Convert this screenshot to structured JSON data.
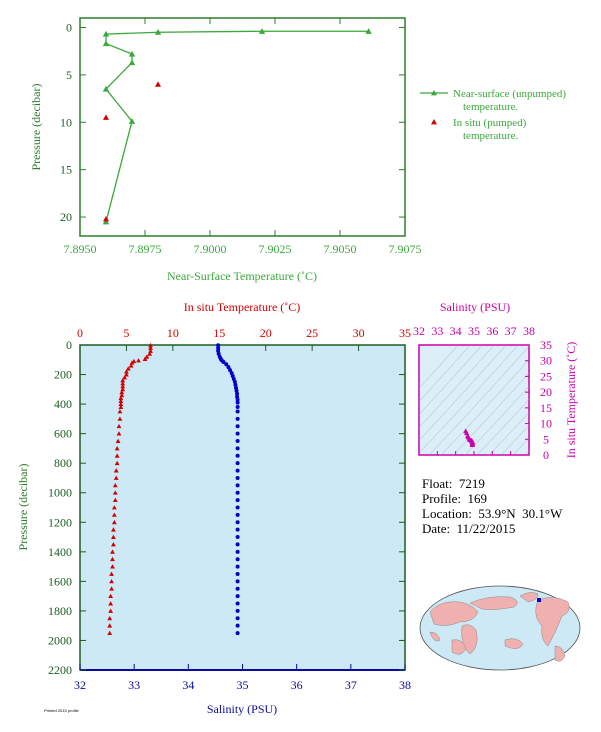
{
  "colors": {
    "near_surface": "#3aa83a",
    "insitu": "#d40000",
    "salinity": "#0000cc",
    "salinity_axis": "#0a0a9e",
    "magenta": "#cc00aa",
    "axis_green": "#2e7d2e",
    "panel_bg": "#cde9f5",
    "ts_bg": "#dceef7",
    "land": "#f0b0b0",
    "ocean": "#cde9f5"
  },
  "info": {
    "float": "Float:  7219",
    "profile": "Profile:  169",
    "location": "Location:  53.9°N  30.1°W",
    "date": "Date:  11/22/2015"
  },
  "footer_note": "Printed 2015 profile",
  "chart_data": [
    {
      "id": "near_surface",
      "type": "line",
      "xlabel": "Near-Surface Temperature (˚C)",
      "ylabel": "Pressure (decibar)",
      "xlim": [
        7.895,
        7.9075
      ],
      "ylim": [
        22,
        -1
      ],
      "x_ticks": [
        "7.8950",
        "7.8975",
        "7.9000",
        "7.9025",
        "7.9050",
        "7.9075"
      ],
      "y_ticks": [
        "0",
        "5",
        "10",
        "15",
        "20"
      ],
      "legend_position": "right",
      "series": [
        {
          "name": "Near-surface (unpumped)\ntemperature.",
          "marker": "triangle",
          "points": [
            [
              7.9061,
              0.4
            ],
            [
              7.902,
              0.4
            ],
            [
              7.898,
              0.5
            ],
            [
              7.896,
              0.7
            ],
            [
              7.896,
              1.7
            ],
            [
              7.897,
              2.8
            ],
            [
              7.897,
              3.7
            ],
            [
              7.896,
              6.5
            ],
            [
              7.897,
              9.9
            ],
            [
              7.896,
              20.5
            ]
          ]
        },
        {
          "name": "In situ (pumped)\ntemperature.",
          "marker": "triangle",
          "points": [
            [
              7.898,
              6.0
            ],
            [
              7.896,
              9.5
            ],
            [
              7.896,
              20.2
            ]
          ]
        }
      ]
    },
    {
      "id": "profile",
      "type": "scatter",
      "title": "In situ Temperature (˚C)",
      "xlabel": "Salinity (PSU)",
      "ylabel": "Pressure (decibar)",
      "top_axis": {
        "range": [
          0,
          35
        ],
        "ticks": [
          "0",
          "5",
          "10",
          "15",
          "20",
          "25",
          "30",
          "35"
        ]
      },
      "bottom_axis": {
        "range": [
          32,
          38
        ],
        "ticks": [
          "32",
          "33",
          "34",
          "35",
          "36",
          "37",
          "38"
        ]
      },
      "ylim": [
        2200,
        0
      ],
      "y_ticks": [
        "0",
        "200",
        "400",
        "600",
        "800",
        "1000",
        "1200",
        "1400",
        "1600",
        "1800",
        "2000",
        "2200"
      ],
      "temperature_profile": [
        [
          7.6,
          2
        ],
        [
          7.6,
          20
        ],
        [
          7.6,
          40
        ],
        [
          7.5,
          60
        ],
        [
          7.2,
          80
        ],
        [
          7.0,
          95
        ],
        [
          6.3,
          105
        ],
        [
          5.8,
          110
        ],
        [
          5.6,
          120
        ],
        [
          5.5,
          140
        ],
        [
          5.2,
          160
        ],
        [
          5.0,
          180
        ],
        [
          5.0,
          200
        ],
        [
          4.8,
          220
        ],
        [
          4.6,
          240
        ],
        [
          4.6,
          260
        ],
        [
          4.6,
          280
        ],
        [
          4.6,
          300
        ],
        [
          4.5,
          320
        ],
        [
          4.5,
          340
        ],
        [
          4.4,
          360
        ],
        [
          4.4,
          380
        ],
        [
          4.4,
          400
        ],
        [
          4.4,
          420
        ],
        [
          4.3,
          450
        ],
        [
          4.3,
          500
        ],
        [
          4.2,
          550
        ],
        [
          4.2,
          600
        ],
        [
          4.1,
          650
        ],
        [
          4.0,
          700
        ],
        [
          4.0,
          750
        ],
        [
          4.0,
          800
        ],
        [
          3.9,
          850
        ],
        [
          3.9,
          900
        ],
        [
          3.8,
          950
        ],
        [
          3.8,
          1000
        ],
        [
          3.8,
          1050
        ],
        [
          3.7,
          1100
        ],
        [
          3.7,
          1150
        ],
        [
          3.7,
          1200
        ],
        [
          3.6,
          1250
        ],
        [
          3.6,
          1300
        ],
        [
          3.6,
          1350
        ],
        [
          3.5,
          1400
        ],
        [
          3.5,
          1450
        ],
        [
          3.5,
          1500
        ],
        [
          3.4,
          1550
        ],
        [
          3.4,
          1600
        ],
        [
          3.4,
          1650
        ],
        [
          3.3,
          1700
        ],
        [
          3.3,
          1750
        ],
        [
          3.3,
          1800
        ],
        [
          3.2,
          1850
        ],
        [
          3.2,
          1900
        ],
        [
          3.2,
          1950
        ]
      ],
      "salinity_profile": [
        [
          34.55,
          2
        ],
        [
          34.55,
          20
        ],
        [
          34.55,
          40
        ],
        [
          34.56,
          60
        ],
        [
          34.58,
          80
        ],
        [
          34.6,
          95
        ],
        [
          34.62,
          105
        ],
        [
          34.65,
          115
        ],
        [
          34.7,
          130
        ],
        [
          34.74,
          150
        ],
        [
          34.77,
          170
        ],
        [
          34.8,
          190
        ],
        [
          34.82,
          210
        ],
        [
          34.84,
          230
        ],
        [
          34.86,
          250
        ],
        [
          34.87,
          270
        ],
        [
          34.88,
          290
        ],
        [
          34.89,
          310
        ],
        [
          34.9,
          330
        ],
        [
          34.9,
          350
        ],
        [
          34.91,
          370
        ],
        [
          34.91,
          390
        ],
        [
          34.91,
          420
        ],
        [
          34.91,
          450
        ],
        [
          34.91,
          500
        ],
        [
          34.91,
          550
        ],
        [
          34.91,
          600
        ],
        [
          34.91,
          650
        ],
        [
          34.91,
          700
        ],
        [
          34.91,
          750
        ],
        [
          34.91,
          800
        ],
        [
          34.91,
          850
        ],
        [
          34.91,
          900
        ],
        [
          34.91,
          950
        ],
        [
          34.91,
          1000
        ],
        [
          34.91,
          1050
        ],
        [
          34.91,
          1100
        ],
        [
          34.91,
          1150
        ],
        [
          34.91,
          1200
        ],
        [
          34.91,
          1250
        ],
        [
          34.91,
          1300
        ],
        [
          34.91,
          1350
        ],
        [
          34.91,
          1400
        ],
        [
          34.91,
          1450
        ],
        [
          34.91,
          1500
        ],
        [
          34.91,
          1550
        ],
        [
          34.91,
          1600
        ],
        [
          34.91,
          1650
        ],
        [
          34.91,
          1700
        ],
        [
          34.91,
          1750
        ],
        [
          34.91,
          1800
        ],
        [
          34.91,
          1850
        ],
        [
          34.91,
          1900
        ],
        [
          34.91,
          1950
        ]
      ]
    },
    {
      "id": "ts_diagram",
      "type": "scatter",
      "title": "Salinity (PSU)",
      "ylabel": "In situ Temperature (˚C)",
      "xlim": [
        32,
        38
      ],
      "ylim": [
        0,
        35
      ],
      "x_ticks": [
        "32",
        "33",
        "34",
        "35",
        "36",
        "37",
        "38"
      ],
      "y_ticks": [
        "0",
        "5",
        "10",
        "15",
        "20",
        "25",
        "30",
        "35"
      ],
      "points": [
        [
          34.55,
          7.6
        ],
        [
          34.6,
          7.0
        ],
        [
          34.65,
          6.0
        ],
        [
          34.7,
          5.6
        ],
        [
          34.75,
          5.0
        ],
        [
          34.8,
          4.8
        ],
        [
          34.85,
          4.6
        ],
        [
          34.88,
          4.5
        ],
        [
          34.9,
          4.4
        ],
        [
          34.91,
          4.2
        ],
        [
          34.91,
          4.0
        ],
        [
          34.91,
          3.8
        ],
        [
          34.91,
          3.6
        ],
        [
          34.91,
          3.4
        ],
        [
          34.91,
          3.2
        ]
      ]
    }
  ]
}
